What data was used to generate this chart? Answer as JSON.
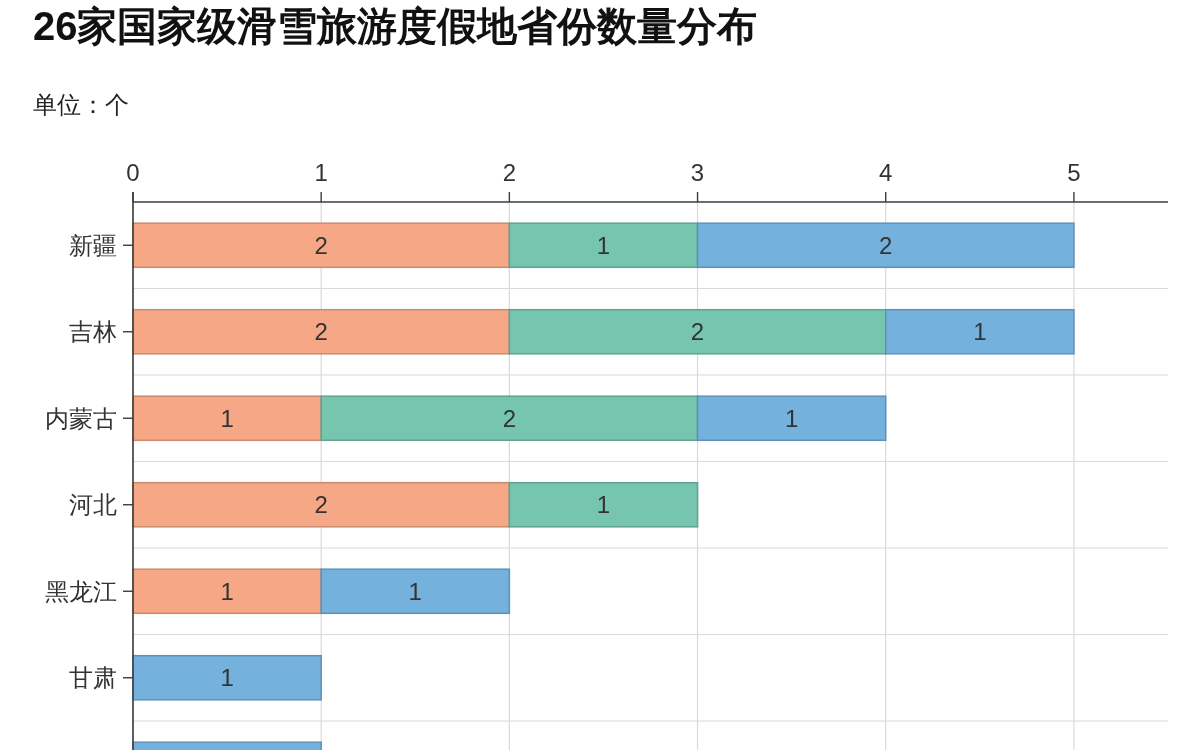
{
  "chart_data": {
    "type": "bar",
    "orientation": "horizontal",
    "stacked": true,
    "title": "26家国家级滑雪旅游度假地省份数量分布",
    "subtitle": "单位：个",
    "categories": [
      "新疆",
      "吉林",
      "内蒙古",
      "河北",
      "黑龙江",
      "甘肃",
      null
    ],
    "series": [
      {
        "color": "#f6a886",
        "values": [
          2,
          2,
          1,
          2,
          1,
          null,
          null
        ],
        "value_labels": [
          "2",
          "2",
          "1",
          "2",
          "1",
          null,
          null
        ]
      },
      {
        "color": "#76c5af",
        "values": [
          1,
          2,
          2,
          1,
          null,
          null,
          null
        ],
        "value_labels": [
          "1",
          "2",
          "2",
          "1",
          null,
          null,
          null
        ]
      },
      {
        "color": "#74b1dd",
        "values": [
          2,
          1,
          1,
          null,
          1,
          1,
          1
        ],
        "value_labels": [
          "2",
          "1",
          "1",
          null,
          "1",
          "1",
          null
        ]
      }
    ],
    "xlim": [
      0,
      5.5
    ],
    "xticks": [
      0,
      1,
      2,
      3,
      4,
      5
    ],
    "grid": true
  }
}
